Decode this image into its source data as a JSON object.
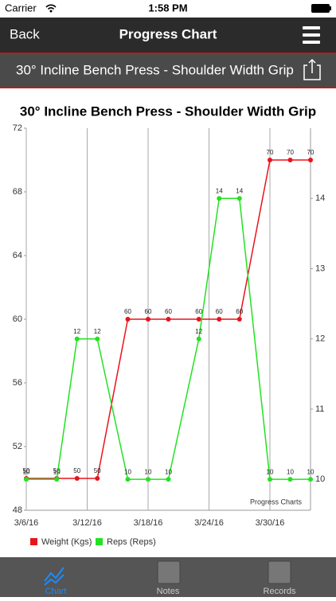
{
  "status": {
    "carrier": "Carrier",
    "time": "1:58 PM"
  },
  "nav": {
    "back": "Back",
    "title": "Progress Chart"
  },
  "header": {
    "exercise": "30° Incline Bench Press - Shoulder Width Grip"
  },
  "tabs": [
    {
      "label": "Chart"
    },
    {
      "label": "Notes"
    },
    {
      "label": "Records"
    }
  ],
  "chart_data": {
    "type": "line",
    "title": "30° Incline Bench Press - Shoulder Width Grip",
    "watermark": "Progress Charts",
    "x": [
      "2016-03-06",
      "2016-03-09",
      "2016-03-11",
      "2016-03-13",
      "2016-03-16",
      "2016-03-18",
      "2016-03-20",
      "2016-03-23",
      "2016-03-25",
      "2016-03-27",
      "2016-03-30",
      "2016-04-01",
      "2016-04-03"
    ],
    "xlim": [
      "2016-03-06",
      "2016-04-03"
    ],
    "xticks": [
      {
        "value": "2016-03-06",
        "label": "3/6/16"
      },
      {
        "value": "2016-03-12",
        "label": "3/12/16"
      },
      {
        "value": "2016-03-18",
        "label": "3/18/16"
      },
      {
        "value": "2016-03-24",
        "label": "3/24/16"
      },
      {
        "value": "2016-03-30",
        "label": "3/30/16"
      }
    ],
    "ylim": [
      48,
      72
    ],
    "yticks": [
      48,
      52,
      56,
      60,
      64,
      68,
      72
    ],
    "y2lim": [
      9.56,
      15.0
    ],
    "y2ticks": [
      10,
      11,
      12,
      13,
      14
    ],
    "grid": true,
    "legend": "bottom-left",
    "series": [
      {
        "name": "Weight (Kgs)",
        "color": "#e8141b",
        "values": [
          50,
          50,
          50,
          50,
          60,
          60,
          60,
          60,
          60,
          60,
          70,
          70,
          70
        ]
      },
      {
        "name": "Reps (Reps)",
        "color": "#22e222",
        "axis": "y2",
        "values": [
          10,
          10,
          12,
          12,
          10,
          10,
          10,
          12,
          14,
          14,
          10,
          10,
          10
        ]
      }
    ]
  }
}
